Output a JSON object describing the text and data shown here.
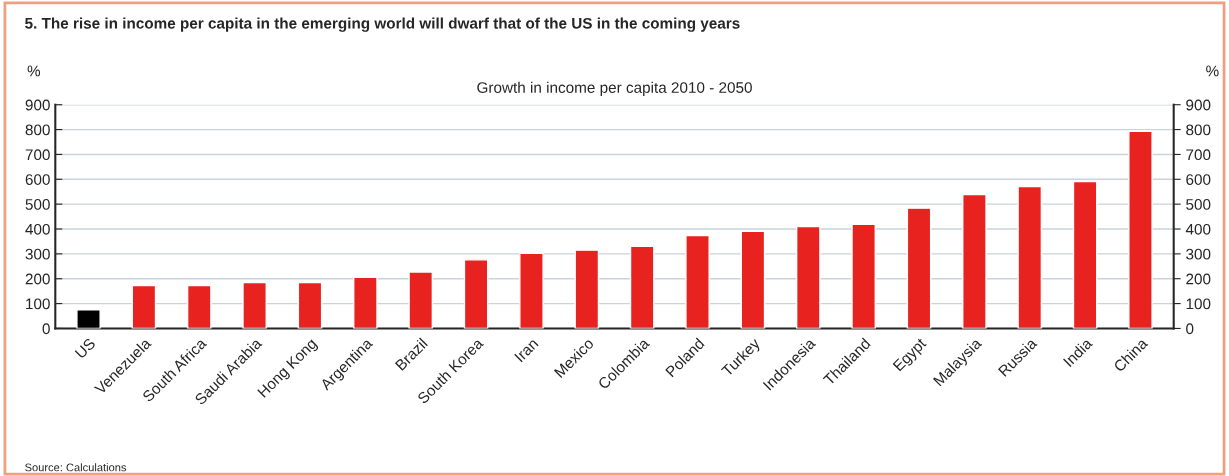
{
  "chart_data": {
    "type": "bar",
    "title": "5. The rise in income per capita in the emerging world will dwarf that of the US in the coming years",
    "subtitle": "Growth in income per capita 2010 - 2050",
    "ylabel": "%",
    "y2label": "%",
    "categories": [
      "US",
      "Venezuela",
      "South Africa",
      "Saudi Arabia",
      "Hong Kong",
      "Argentina",
      "Brazil",
      "South Korea",
      "Iran",
      "Mexico",
      "Colombia",
      "Poland",
      "Turkey",
      "Indonesia",
      "Thailand",
      "Egypt",
      "Malaysia",
      "Russia",
      "India",
      "China"
    ],
    "values": [
      75,
      173,
      173,
      185,
      185,
      206,
      227,
      276,
      302,
      315,
      330,
      374,
      391,
      410,
      419,
      484,
      539,
      571,
      591,
      793
    ],
    "colors": [
      "#000000",
      "#e8221e",
      "#e8221e",
      "#e8221e",
      "#e8221e",
      "#e8221e",
      "#e8221e",
      "#e8221e",
      "#e8221e",
      "#e8221e",
      "#e8221e",
      "#e8221e",
      "#e8221e",
      "#e8221e",
      "#e8221e",
      "#e8221e",
      "#e8221e",
      "#e8221e",
      "#e8221e",
      "#e8221e"
    ],
    "ylim": [
      0,
      900
    ],
    "yticks": [
      0,
      100,
      200,
      300,
      400,
      500,
      600,
      700,
      800,
      900
    ],
    "y2lim": [
      0,
      900
    ],
    "y2ticks": [
      0,
      100,
      200,
      300,
      400,
      500,
      600,
      700,
      800,
      900
    ],
    "grid": "y",
    "legend": false,
    "annotations": [
      "Source: Calculations"
    ]
  }
}
